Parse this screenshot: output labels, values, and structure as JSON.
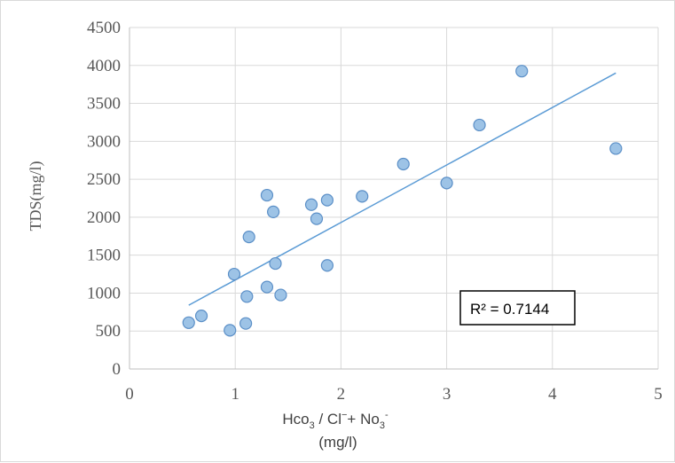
{
  "chart_data": {
    "type": "scatter",
    "title": "",
    "ylabel": "TDS(mg/l)",
    "xlabel_parts": [
      {
        "text": "Hco",
        "sub": "3"
      },
      {
        "text": " / Cl",
        "sup": "−"
      },
      {
        "text": "+ No",
        "sub": "3"
      },
      {
        "sup": "-"
      }
    ],
    "xlabel_line2": "(mg/l)",
    "xlim": [
      0,
      5
    ],
    "ylim": [
      0,
      4500
    ],
    "xticks": [
      0,
      1,
      2,
      3,
      4,
      5
    ],
    "yticks": [
      0,
      500,
      1000,
      1500,
      2000,
      2500,
      3000,
      3500,
      4000,
      4500
    ],
    "grid": true,
    "legend": "none",
    "series": [
      {
        "marker_color": "#9dc3e6",
        "marker_edge": "#5b8fc7",
        "points": [
          {
            "x": 0.56,
            "y": 610
          },
          {
            "x": 0.68,
            "y": 700
          },
          {
            "x": 0.95,
            "y": 510
          },
          {
            "x": 0.99,
            "y": 1250
          },
          {
            "x": 1.1,
            "y": 600
          },
          {
            "x": 1.11,
            "y": 955
          },
          {
            "x": 1.13,
            "y": 1740
          },
          {
            "x": 1.3,
            "y": 1080
          },
          {
            "x": 1.3,
            "y": 2290
          },
          {
            "x": 1.36,
            "y": 2070
          },
          {
            "x": 1.38,
            "y": 1390
          },
          {
            "x": 1.43,
            "y": 975
          },
          {
            "x": 1.72,
            "y": 2165
          },
          {
            "x": 1.77,
            "y": 1980
          },
          {
            "x": 1.87,
            "y": 2225
          },
          {
            "x": 1.87,
            "y": 1365
          },
          {
            "x": 2.2,
            "y": 2275
          },
          {
            "x": 2.59,
            "y": 2700
          },
          {
            "x": 3.0,
            "y": 2450
          },
          {
            "x": 3.31,
            "y": 3215
          },
          {
            "x": 3.71,
            "y": 3925
          },
          {
            "x": 4.6,
            "y": 2905
          }
        ]
      }
    ],
    "trendline": {
      "type": "linear",
      "color": "#5b9bd5",
      "x": [
        0.56,
        4.6
      ],
      "y": [
        840,
        3900
      ]
    },
    "annotation": {
      "text": "R² = 0.7144"
    }
  }
}
